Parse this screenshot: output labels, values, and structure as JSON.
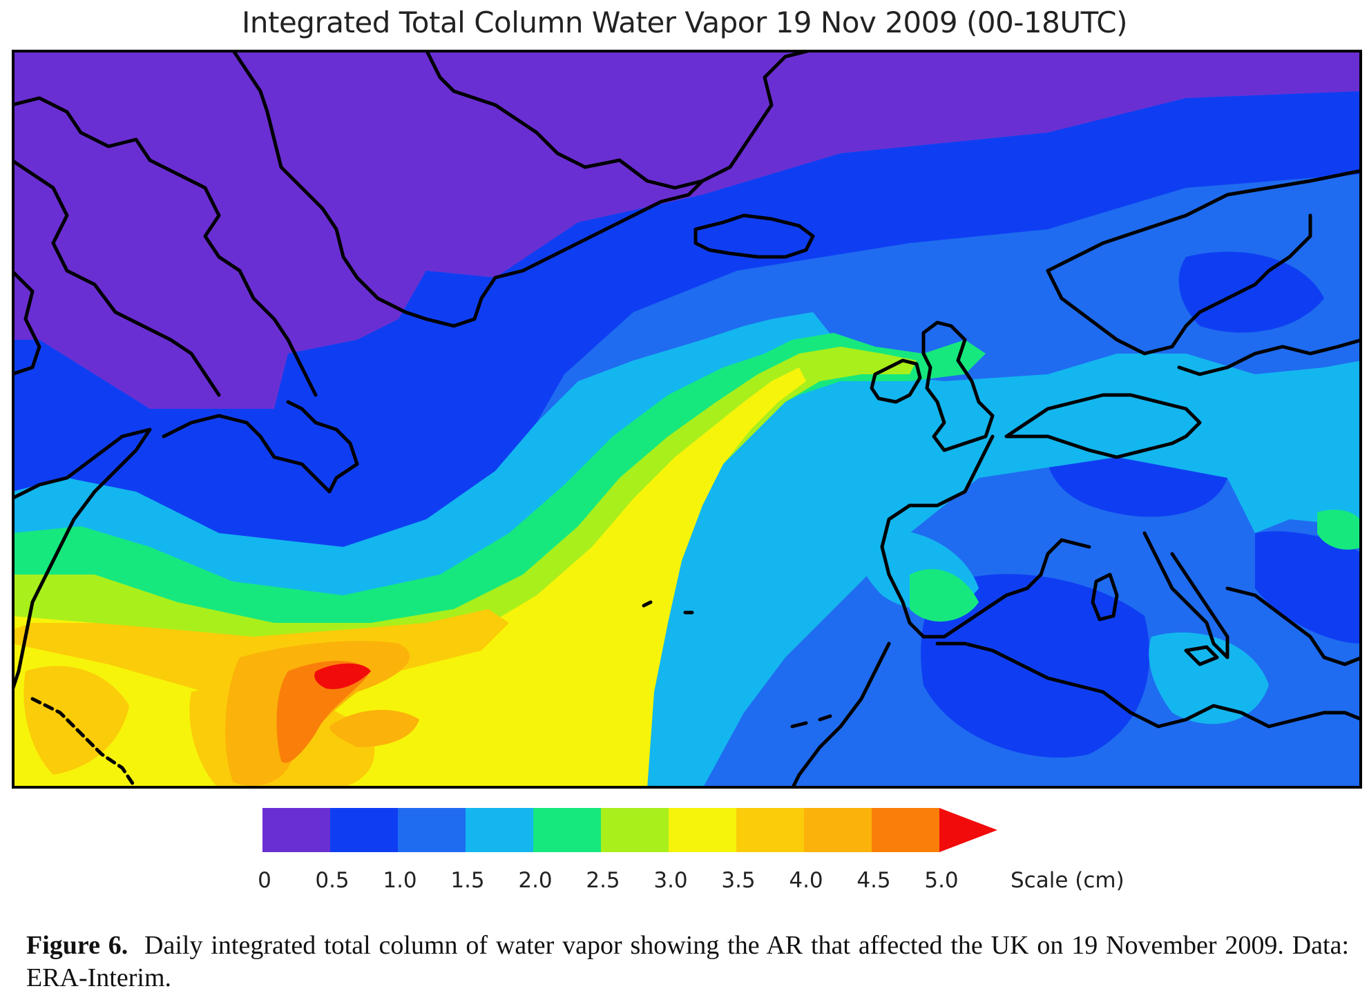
{
  "title": "Integrated Total Column Water Vapor  19 Nov 2009 (00-18UTC)",
  "colorbar": {
    "ticks": [
      "0",
      "0.5",
      "1.0",
      "1.5",
      "2.0",
      "2.5",
      "3.0",
      "3.5",
      "4.0",
      "4.5",
      "5.0"
    ],
    "colors": [
      "#6a2fd2",
      "#0f3ef2",
      "#1f6cf0",
      "#14b6ef",
      "#16e87e",
      "#a9ef1c",
      "#f6f40a",
      "#fbcc0a",
      "#fbb20a",
      "#fa7f0a",
      "#f20b0b"
    ],
    "unit_label": "Scale (cm)"
  },
  "caption": {
    "label": "Figure 6.",
    "text": "Daily integrated total column of water vapor showing the AR that affected the UK on 19 November 2009. Data: ERA-Interim."
  }
}
